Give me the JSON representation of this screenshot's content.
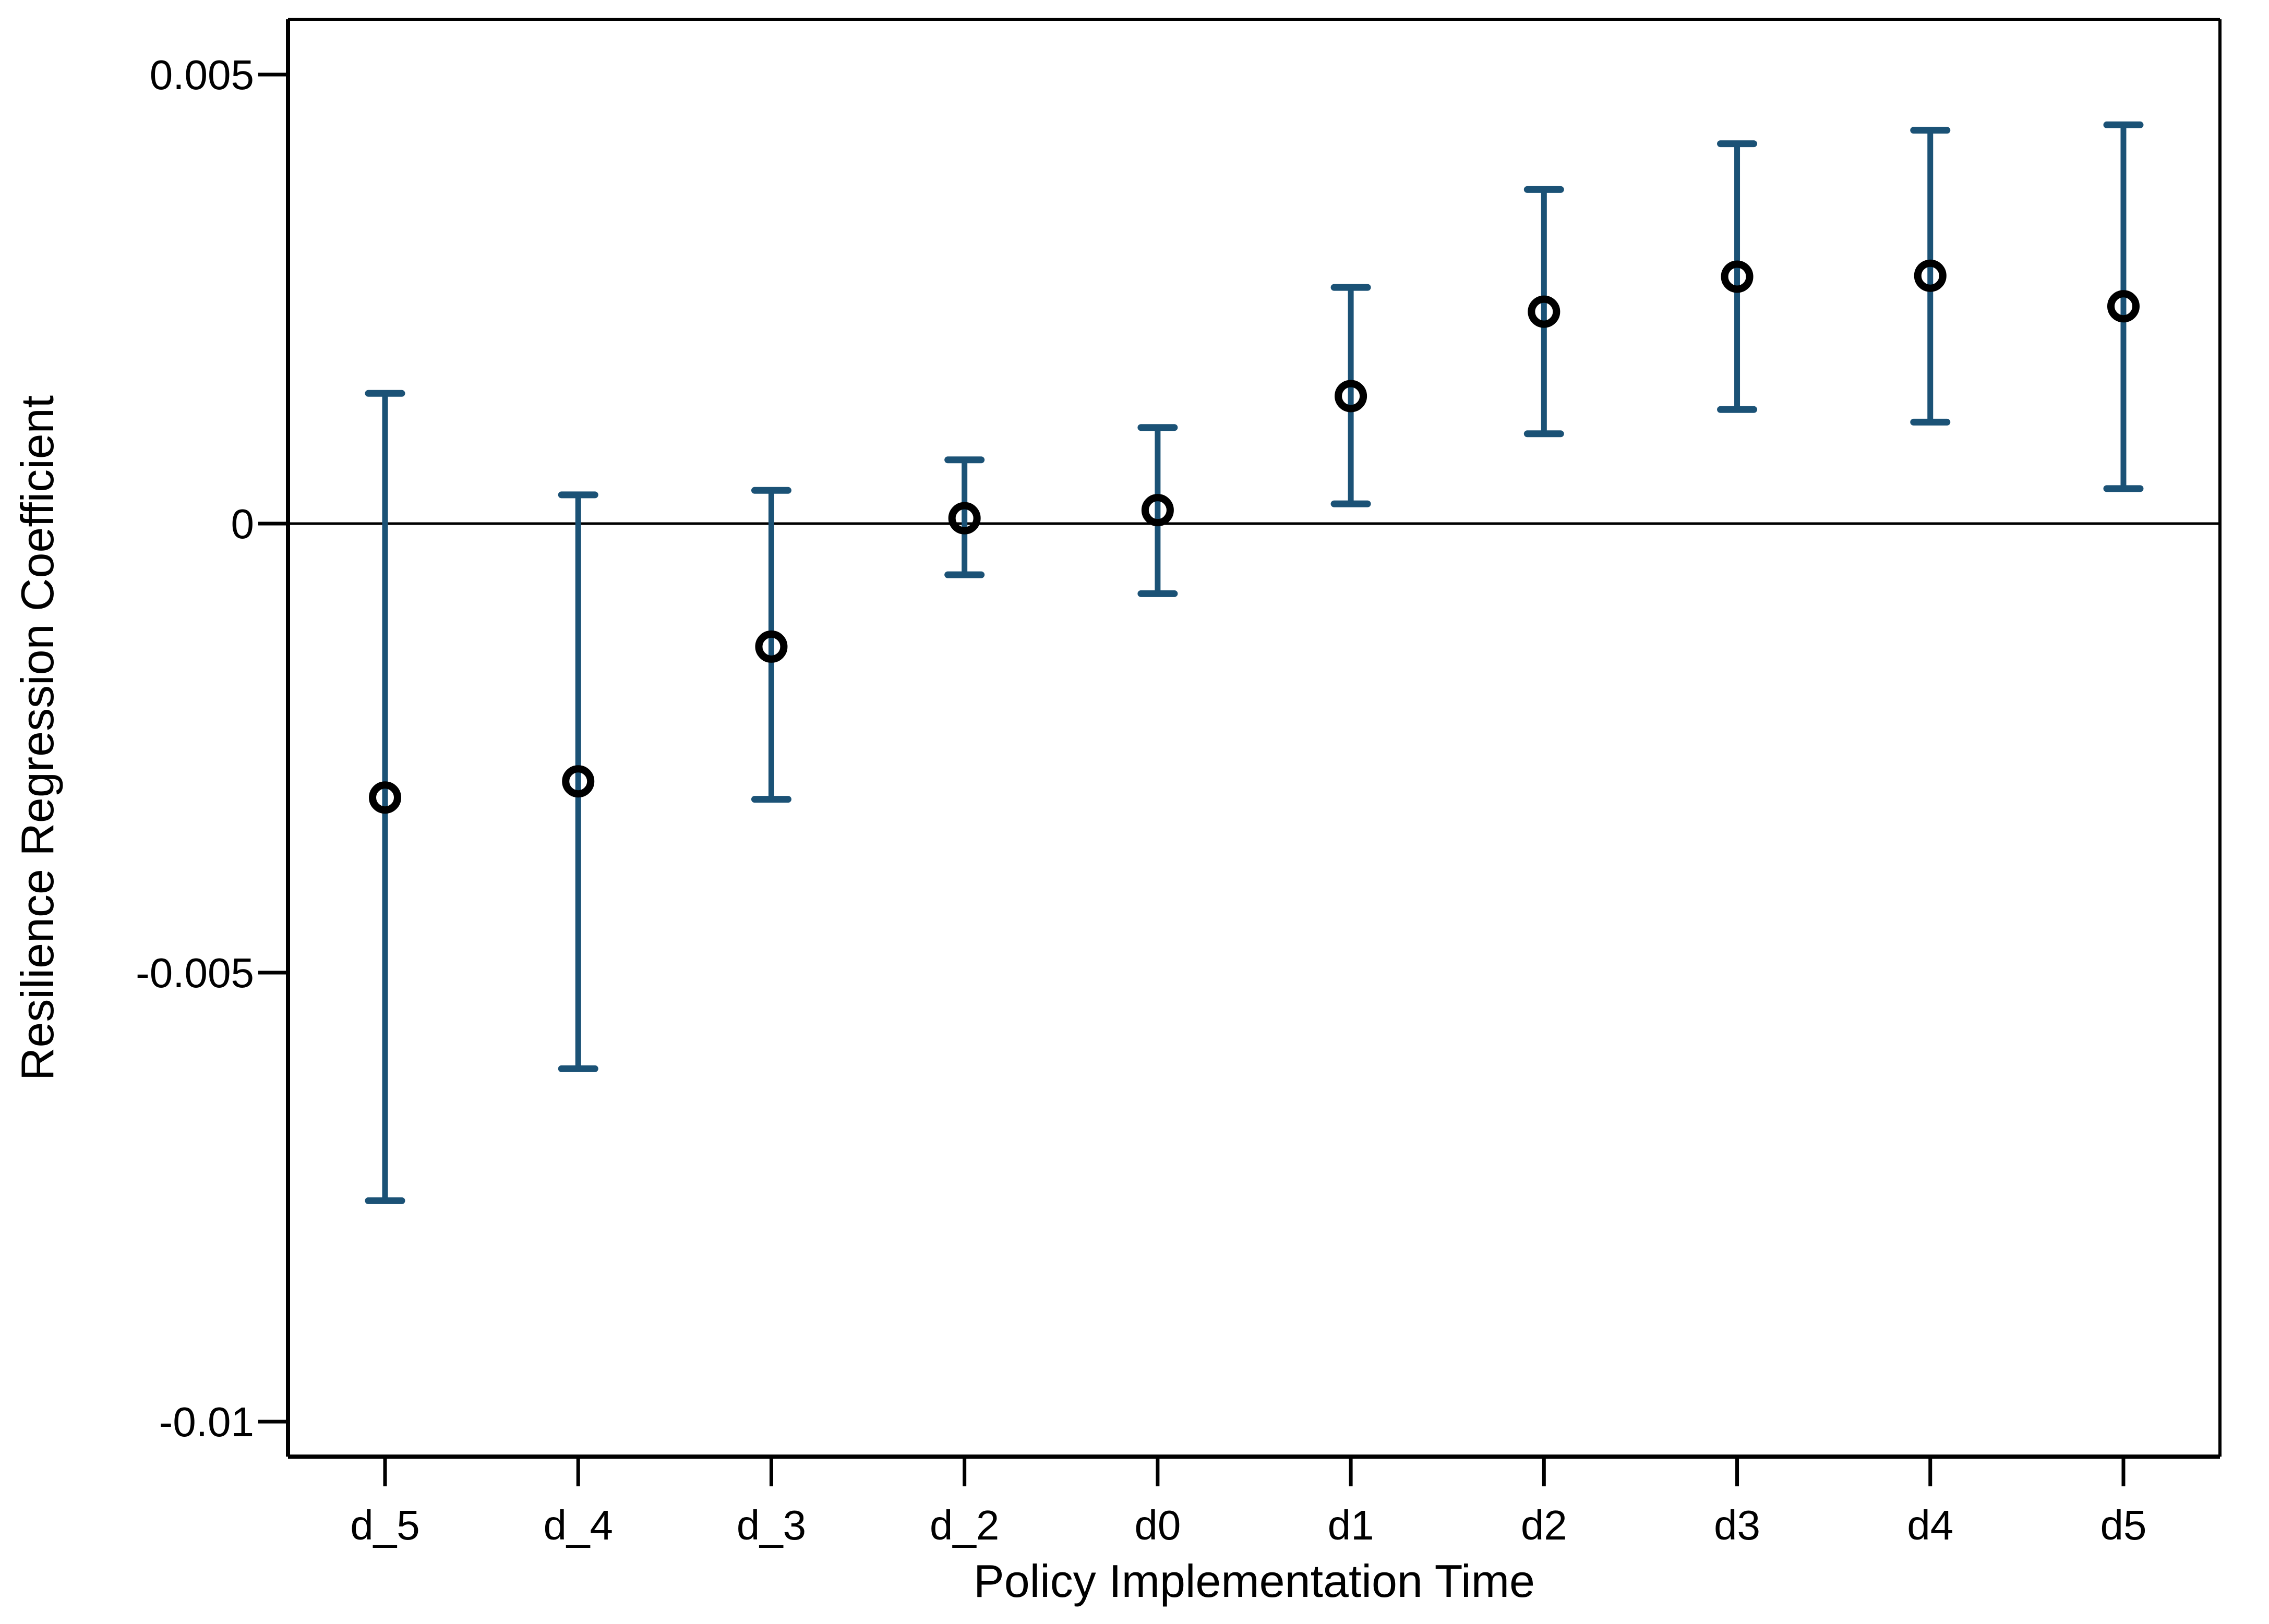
{
  "page": {
    "background": "#ffffff"
  },
  "chart_data": {
    "type": "scatter",
    "variant": "coefficient-plot-with-95ci-error-bars",
    "title": "",
    "xlabel": "Policy Implementation Time",
    "ylabel": "Resilience Regression Coefficient",
    "categories": [
      "d_5",
      "d_4",
      "d_3",
      "d_2",
      "d0",
      "d1",
      "d2",
      "d3",
      "d4",
      "d5"
    ],
    "series": [
      {
        "name": "coefficient",
        "marker": "open-circle",
        "values": [
          -0.00305,
          -0.00287,
          -0.00137,
          6e-05,
          0.00015,
          0.00142,
          0.00236,
          0.00275,
          0.00276,
          0.00242
        ],
        "ci_low": [
          -0.00754,
          -0.00607,
          -0.00307,
          -0.00057,
          -0.00078,
          0.00022,
          0.001,
          0.00127,
          0.00113,
          0.00039
        ],
        "ci_high": [
          0.00145,
          0.00032,
          0.00037,
          0.00071,
          0.00107,
          0.00263,
          0.00372,
          0.00423,
          0.00438,
          0.00444
        ]
      }
    ],
    "y_axis": {
      "ticks": [
        0.005,
        0,
        -0.005,
        -0.01
      ],
      "tick_labels": [
        "0.005",
        "0",
        "-0.005",
        "-0.01"
      ],
      "range": [
        -0.0104,
        0.0056
      ]
    },
    "x_axis": {
      "tick_labels": [
        "d_5",
        "d_4",
        "d_3",
        "d_2",
        "d0",
        "d1",
        "d2",
        "d3",
        "d4",
        "d5"
      ]
    },
    "reference_line_y": 0,
    "grid": false,
    "legend": "none",
    "colors": {
      "error_bar": "#1b5276",
      "marker_stroke": "#000000",
      "axis": "#000000",
      "background": "#ffffff"
    }
  }
}
